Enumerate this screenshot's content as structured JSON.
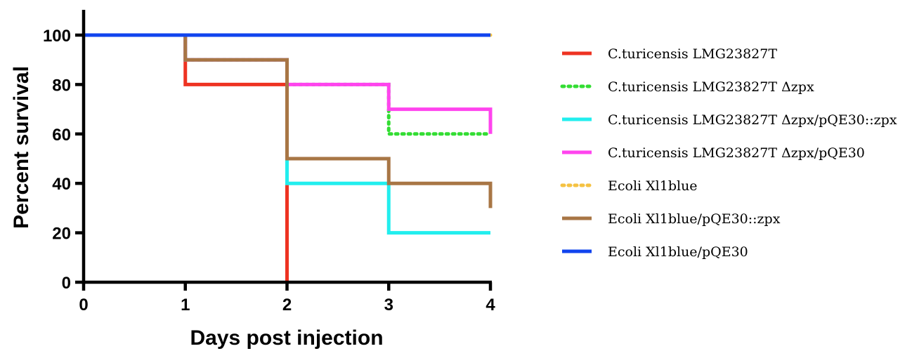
{
  "chart_data": {
    "type": "line",
    "step": true,
    "title": "",
    "xlabel": "Days post injection",
    "ylabel": "Percent survival",
    "xlim": [
      0,
      4
    ],
    "ylim": [
      0,
      100
    ],
    "x_ticks": [
      "0",
      "1",
      "2",
      "3",
      "4"
    ],
    "y_ticks": [
      "0",
      "20",
      "40",
      "60",
      "80",
      "100"
    ],
    "grid": false,
    "legend_position": "right",
    "series": [
      {
        "name": "C.turicensis LMG23827T",
        "color": "#ee3322",
        "dash": "solid",
        "x": [
          0,
          1,
          2
        ],
        "y": [
          100,
          80,
          0
        ]
      },
      {
        "name": "C.turicensis LMG23827T Δzpx",
        "color": "#33dd33",
        "dash": "dotted",
        "x": [
          0,
          1,
          2,
          3,
          4
        ],
        "y": [
          100,
          90,
          80,
          60,
          60
        ]
      },
      {
        "name": "C.turicensis LMG23827T Δzpx/pQE30::zpx",
        "color": "#22eeee",
        "dash": "solid",
        "x": [
          0,
          1,
          2,
          3,
          4
        ],
        "y": [
          100,
          90,
          40,
          20,
          20
        ]
      },
      {
        "name": "C.turicensis LMG23827T Δzpx/pQE30",
        "color": "#ff44ee",
        "dash": "solid",
        "x": [
          0,
          1,
          2,
          3,
          4
        ],
        "y": [
          100,
          90,
          80,
          70,
          60
        ]
      },
      {
        "name": "Ecoli Xl1blue",
        "color": "#f5c242",
        "dash": "dotted",
        "x": [
          0,
          4
        ],
        "y": [
          100,
          100
        ]
      },
      {
        "name": "Ecoli Xl1blue/pQE30::zpx",
        "color": "#a87645",
        "dash": "solid",
        "x": [
          0,
          1,
          2,
          3,
          4
        ],
        "y": [
          100,
          90,
          50,
          40,
          30
        ]
      },
      {
        "name": "Ecoli Xl1blue/pQE30",
        "color": "#1144ee",
        "dash": "solid",
        "x": [
          0,
          4
        ],
        "y": [
          100,
          100
        ]
      }
    ]
  }
}
